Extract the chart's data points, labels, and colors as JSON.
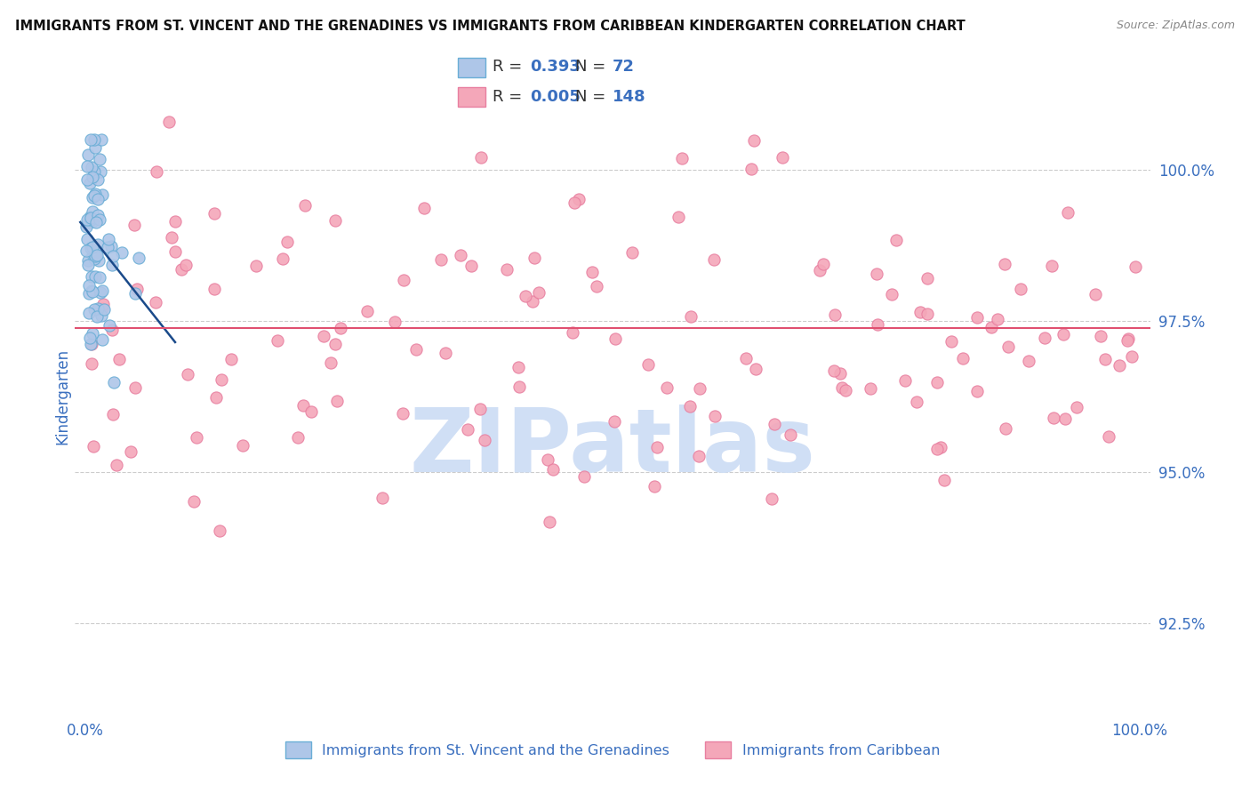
{
  "title": "IMMIGRANTS FROM ST. VINCENT AND THE GRENADINES VS IMMIGRANTS FROM CARIBBEAN KINDERGARTEN CORRELATION CHART",
  "source": "Source: ZipAtlas.com",
  "ylabel": "Kindergarten",
  "y_tick_values": [
    92.5,
    95.0,
    97.5,
    100.0
  ],
  "ylim": [
    91.0,
    101.5
  ],
  "xlim": [
    -1,
    101
  ],
  "blue_R": "0.393",
  "blue_N": "72",
  "pink_R": "0.005",
  "pink_N": "148",
  "blue_color": "#aec6e8",
  "pink_color": "#f4a7b9",
  "blue_edge": "#6aaed6",
  "pink_edge": "#e87fa0",
  "trend_blue_color": "#1a4a8a",
  "hline_pink_color": "#e05070",
  "hline_y": 97.38,
  "legend_text_color": "#3a6fbf",
  "axis_color": "#3a6fbf",
  "grid_color": "#cccccc",
  "title_color": "#111111",
  "watermark_color": "#d0dff5",
  "watermark_text": "ZIPatlas"
}
